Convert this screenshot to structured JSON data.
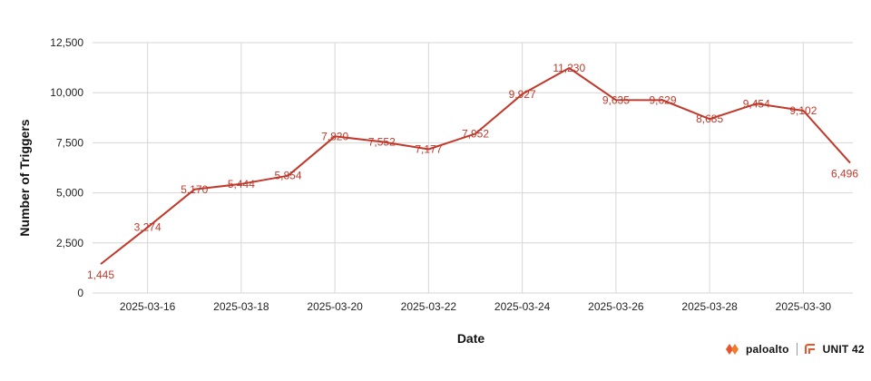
{
  "chart_data": {
    "type": "line",
    "xlabel": "Date",
    "ylabel": "Number of Triggers",
    "x": [
      "2025-03-15",
      "2025-03-16",
      "2025-03-17",
      "2025-03-18",
      "2025-03-19",
      "2025-03-20",
      "2025-03-21",
      "2025-03-22",
      "2025-03-23",
      "2025-03-24",
      "2025-03-25",
      "2025-03-26",
      "2025-03-27",
      "2025-03-28",
      "2025-03-29",
      "2025-03-30",
      "2025-03-31"
    ],
    "values": [
      1445,
      3274,
      5170,
      5444,
      5854,
      7820,
      7552,
      7177,
      7952,
      9927,
      11230,
      9635,
      9629,
      8685,
      9454,
      9102,
      6496
    ],
    "data_labels": [
      "1,445",
      "3,274",
      "5,170",
      "5,444",
      "5,854",
      "7,820",
      "7,552",
      "7,177",
      "7,952",
      "9,927",
      "11,230",
      "9,635",
      "9,629",
      "8,685",
      "9,454",
      "9,102",
      "6,496"
    ],
    "x_ticks": [
      "2025-03-16",
      "2025-03-18",
      "2025-03-20",
      "2025-03-22",
      "2025-03-24",
      "2025-03-26",
      "2025-03-28",
      "2025-03-30"
    ],
    "y_ticks": [
      0,
      2500,
      5000,
      7500,
      10000,
      12500
    ],
    "y_tick_labels": [
      "0",
      "2,500",
      "5,000",
      "7,500",
      "10,000",
      "12,500"
    ],
    "ylim": [
      0,
      12500
    ],
    "grid": true,
    "line_color": "#c0392b"
  },
  "branding": {
    "logo_left": "paloalto",
    "logo_right": "UNIT 42"
  }
}
